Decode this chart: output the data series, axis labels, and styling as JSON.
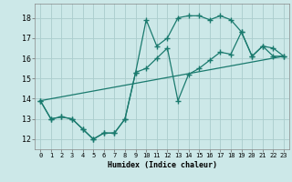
{
  "title": "",
  "xlabel": "Humidex (Indice chaleur)",
  "bg_color": "#cce8e8",
  "grid_color": "#aacccc",
  "line_color": "#1a7a6e",
  "xlim": [
    -0.5,
    23.5
  ],
  "ylim": [
    11.5,
    18.7
  ],
  "xticks": [
    0,
    1,
    2,
    3,
    4,
    5,
    6,
    7,
    8,
    9,
    10,
    11,
    12,
    13,
    14,
    15,
    16,
    17,
    18,
    19,
    20,
    21,
    22,
    23
  ],
  "yticks": [
    12,
    13,
    14,
    15,
    16,
    17,
    18
  ],
  "series1_x": [
    0,
    1,
    2,
    3,
    4,
    5,
    6,
    7,
    8,
    9,
    10,
    11,
    12,
    13,
    14,
    15,
    16,
    17,
    18,
    19,
    20,
    21,
    22,
    23
  ],
  "series1_y": [
    13.9,
    13.0,
    13.1,
    13.0,
    12.5,
    12.0,
    12.3,
    12.3,
    13.0,
    15.3,
    15.5,
    16.0,
    16.5,
    13.9,
    15.2,
    15.5,
    15.9,
    16.3,
    16.2,
    17.3,
    16.1,
    16.6,
    16.1,
    16.1
  ],
  "series2_x": [
    0,
    1,
    2,
    3,
    4,
    5,
    6,
    7,
    8,
    9,
    10,
    11,
    12,
    13,
    14,
    15,
    16,
    17,
    18,
    19,
    20,
    21,
    22,
    23
  ],
  "series2_y": [
    13.9,
    13.0,
    13.1,
    13.0,
    12.5,
    12.0,
    12.3,
    12.3,
    13.0,
    15.3,
    17.9,
    16.6,
    17.0,
    18.0,
    18.1,
    18.1,
    17.9,
    18.1,
    17.9,
    17.3,
    16.1,
    16.6,
    16.5,
    16.1
  ],
  "series3_x": [
    0,
    23
  ],
  "series3_y": [
    13.9,
    16.1
  ]
}
